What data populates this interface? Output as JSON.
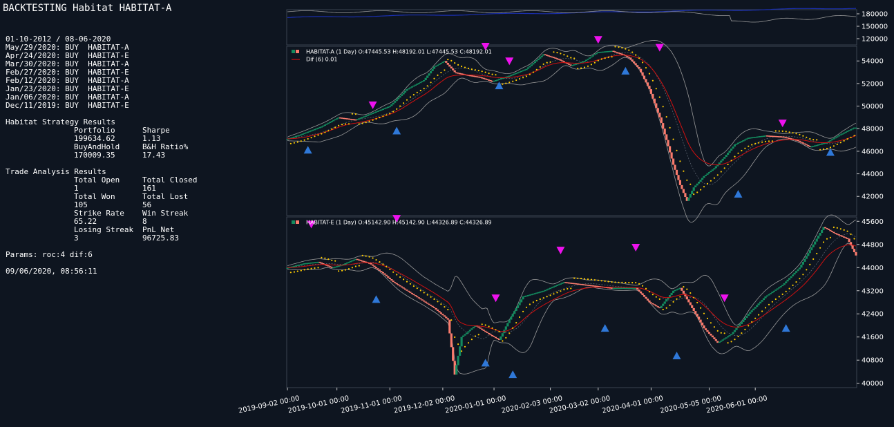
{
  "header": {
    "title": "BACKTESTING Habitat HABITAT-A",
    "date_range": "01-10-2012 / 08-06-2020"
  },
  "signals": [
    "May/29/2020: BUY  HABITAT-A",
    "Apr/24/2020: BUY  HABITAT-E",
    "Mar/30/2020: BUY  HABITAT-A",
    "Feb/27/2020: BUY  HABITAT-E",
    "Feb/12/2020: BUY  HABITAT-A",
    "Jan/23/2020: BUY  HABITAT-E",
    "Jan/06/2020: BUY  HABITAT-A",
    "Dec/11/2019: BUY  HABITAT-E"
  ],
  "strategy_results": {
    "heading": "Habitat Strategy Results",
    "rows": [
      [
        "Portfolio",
        "Sharpe"
      ],
      [
        "199634.62",
        "1.13"
      ],
      [
        "BuyAndHold",
        "B&H Ratio%"
      ],
      [
        "170009.35",
        "17.43"
      ]
    ]
  },
  "trade_analysis": {
    "heading": "Trade Analysis Results",
    "rows": [
      [
        "Total Open",
        "Total Closed"
      ],
      [
        "1",
        "161"
      ],
      [
        "Total Won",
        "Total Lost"
      ],
      [
        "105",
        "56"
      ],
      [
        "Strike Rate",
        "Win Streak"
      ],
      [
        "65.22",
        "8"
      ],
      [
        "Losing Streak",
        "PnL Net"
      ],
      [
        "3",
        "96725.83"
      ]
    ]
  },
  "params": "Params: roc:4 dif:6",
  "timestamp": "09/06/2020, 08:56:11",
  "colors": {
    "background": "#0e1520",
    "up_candle": "#138a5e",
    "down_candle": "#f97b6d",
    "dif_line": "#d01010",
    "psar_dots": "#ffcc00",
    "bands": "#9a9a9a",
    "buy_marker": "#2f78d8",
    "sell_marker": "#ee11ee",
    "portfolio_line": "#1a2fae"
  },
  "chart_data": [
    {
      "type": "line",
      "panel": "portfolio",
      "yticks": [
        120000,
        150000,
        180000
      ],
      "ylim": [
        105000,
        190000
      ],
      "series": []
    },
    {
      "type": "candlestick",
      "panel": "HABITAT-A",
      "legend": [
        "HABITAT-A (1 Day) O:47445.53 H:48192.01 L:47445.53 C:48192.01",
        "Dif (6) 0.01"
      ],
      "yticks": [
        42000,
        44000,
        46000,
        48000,
        50000,
        52000,
        54000
      ],
      "ylim": [
        40300,
        55300
      ],
      "anchors": [
        [
          0,
          47100
        ],
        [
          8,
          47500
        ],
        [
          20,
          48200
        ],
        [
          30,
          49000
        ],
        [
          40,
          48800
        ],
        [
          50,
          49400
        ],
        [
          60,
          50000
        ],
        [
          70,
          51500
        ],
        [
          80,
          52300
        ],
        [
          86,
          53500
        ],
        [
          92,
          54000
        ],
        [
          98,
          53000
        ],
        [
          104,
          52800
        ],
        [
          112,
          52600
        ],
        [
          120,
          52200
        ],
        [
          130,
          52700
        ],
        [
          140,
          53300
        ],
        [
          150,
          54600
        ],
        [
          158,
          54200
        ],
        [
          166,
          53600
        ],
        [
          174,
          54000
        ],
        [
          182,
          54800
        ],
        [
          190,
          54900
        ],
        [
          196,
          54600
        ],
        [
          200,
          54300
        ],
        [
          206,
          53300
        ],
        [
          212,
          51500
        ],
        [
          218,
          49000
        ],
        [
          222,
          47000
        ],
        [
          226,
          44800
        ],
        [
          230,
          43000
        ],
        [
          234,
          41600
        ],
        [
          238,
          42800
        ],
        [
          244,
          43800
        ],
        [
          250,
          44500
        ],
        [
          256,
          45500
        ],
        [
          262,
          46600
        ],
        [
          270,
          47200
        ],
        [
          280,
          47400
        ],
        [
          290,
          47300
        ],
        [
          298,
          47000
        ],
        [
          306,
          46400
        ],
        [
          316,
          46800
        ],
        [
          324,
          47500
        ],
        [
          332,
          48100
        ]
      ],
      "buy_markers": [
        [
          12,
          46100
        ],
        [
          64,
          47800
        ],
        [
          124,
          51800
        ],
        [
          198,
          53100
        ],
        [
          264,
          42200
        ],
        [
          318,
          45900
        ]
      ],
      "sell_markers": [
        [
          50,
          50100
        ],
        [
          116,
          55300
        ],
        [
          130,
          54000
        ],
        [
          182,
          55900
        ],
        [
          218,
          55200
        ],
        [
          290,
          48500
        ]
      ]
    },
    {
      "type": "candlestick",
      "panel": "HABITAT-E",
      "legend": [
        "HABITAT-E (1 Day) O:45142.90 H:45142.90 L:44326.89 C:44326.89"
      ],
      "yticks": [
        40000,
        40800,
        41600,
        42400,
        43200,
        44000,
        44800,
        45600
      ],
      "ylim": [
        39850,
        45750
      ],
      "anchors": [
        [
          0,
          44000
        ],
        [
          10,
          44150
        ],
        [
          18,
          44200
        ],
        [
          26,
          44000
        ],
        [
          32,
          44100
        ],
        [
          40,
          44300
        ],
        [
          48,
          44150
        ],
        [
          56,
          43800
        ],
        [
          62,
          43500
        ],
        [
          70,
          43200
        ],
        [
          78,
          42900
        ],
        [
          86,
          42600
        ],
        [
          94,
          42200
        ],
        [
          98,
          40300
        ],
        [
          102,
          41600
        ],
        [
          110,
          42000
        ],
        [
          118,
          41700
        ],
        [
          124,
          41500
        ],
        [
          130,
          42200
        ],
        [
          138,
          43000
        ],
        [
          150,
          43200
        ],
        [
          162,
          43500
        ],
        [
          176,
          43400
        ],
        [
          190,
          43300
        ],
        [
          204,
          43300
        ],
        [
          212,
          42800
        ],
        [
          218,
          42600
        ],
        [
          226,
          43200
        ],
        [
          230,
          43300
        ],
        [
          238,
          42500
        ],
        [
          244,
          41900
        ],
        [
          252,
          41400
        ],
        [
          260,
          41700
        ],
        [
          270,
          42400
        ],
        [
          280,
          43000
        ],
        [
          290,
          43400
        ],
        [
          300,
          44000
        ],
        [
          308,
          44800
        ],
        [
          314,
          45400
        ],
        [
          320,
          45200
        ],
        [
          328,
          45000
        ],
        [
          334,
          44300
        ]
      ],
      "buy_markers": [
        [
          52,
          42900
        ],
        [
          116,
          40700
        ],
        [
          132,
          40300
        ],
        [
          186,
          41900
        ],
        [
          228,
          40950
        ],
        [
          292,
          41900
        ]
      ],
      "sell_markers": [
        [
          14,
          45500
        ],
        [
          64,
          45700
        ],
        [
          122,
          42950
        ],
        [
          160,
          44600
        ],
        [
          204,
          44700
        ],
        [
          256,
          42950
        ]
      ]
    }
  ],
  "x_axis": {
    "labels": [
      "2019-09-02 00:00",
      "2019-10-01 00:00",
      "2019-11-01 00:00",
      "2019-12-02 00:00",
      "2020-01-01 00:00",
      "2020-02-03 00:00",
      "2020-03-02 00:00",
      "2020-04-01 00:00",
      "2020-05-05 00:00",
      "2020-06-01 00:00"
    ],
    "label_bar_index": [
      0,
      29,
      60,
      91,
      121,
      154,
      182,
      213,
      247,
      274
    ]
  }
}
